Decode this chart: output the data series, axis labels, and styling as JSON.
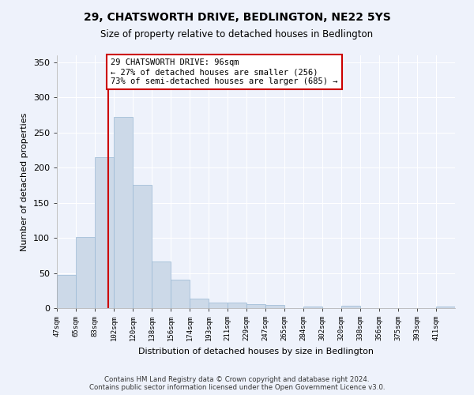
{
  "title": "29, CHATSWORTH DRIVE, BEDLINGTON, NE22 5YS",
  "subtitle": "Size of property relative to detached houses in Bedlington",
  "xlabel": "Distribution of detached houses by size in Bedlington",
  "ylabel": "Number of detached properties",
  "bar_color": "#ccd9e8",
  "bar_edge_color": "#99b8d4",
  "background_color": "#eef2fb",
  "grid_color": "#ffffff",
  "vline_x": 96,
  "vline_color": "#cc0000",
  "annotation_text": "29 CHATSWORTH DRIVE: 96sqm\n← 27% of detached houses are smaller (256)\n73% of semi-detached houses are larger (685) →",
  "annotation_box_color": "#ffffff",
  "annotation_box_edge": "#cc0000",
  "footer": "Contains HM Land Registry data © Crown copyright and database right 2024.\nContains public sector information licensed under the Open Government Licence v3.0.",
  "bin_edges": [
    47,
    65,
    83,
    101,
    119,
    137,
    155,
    173,
    191,
    209,
    227,
    245,
    263,
    281,
    299,
    317,
    335,
    353,
    371,
    389,
    407,
    425
  ],
  "bin_labels": [
    "47sqm",
    "65sqm",
    "83sqm",
    "102sqm",
    "120sqm",
    "138sqm",
    "156sqm",
    "174sqm",
    "193sqm",
    "211sqm",
    "229sqm",
    "247sqm",
    "265sqm",
    "284sqm",
    "302sqm",
    "320sqm",
    "338sqm",
    "356sqm",
    "375sqm",
    "393sqm",
    "411sqm"
  ],
  "bar_heights": [
    47,
    101,
    215,
    272,
    176,
    66,
    40,
    13,
    8,
    8,
    6,
    4,
    0,
    2,
    0,
    3,
    0,
    0,
    0,
    0,
    2
  ],
  "ylim": [
    0,
    360
  ],
  "yticks": [
    0,
    50,
    100,
    150,
    200,
    250,
    300,
    350
  ]
}
